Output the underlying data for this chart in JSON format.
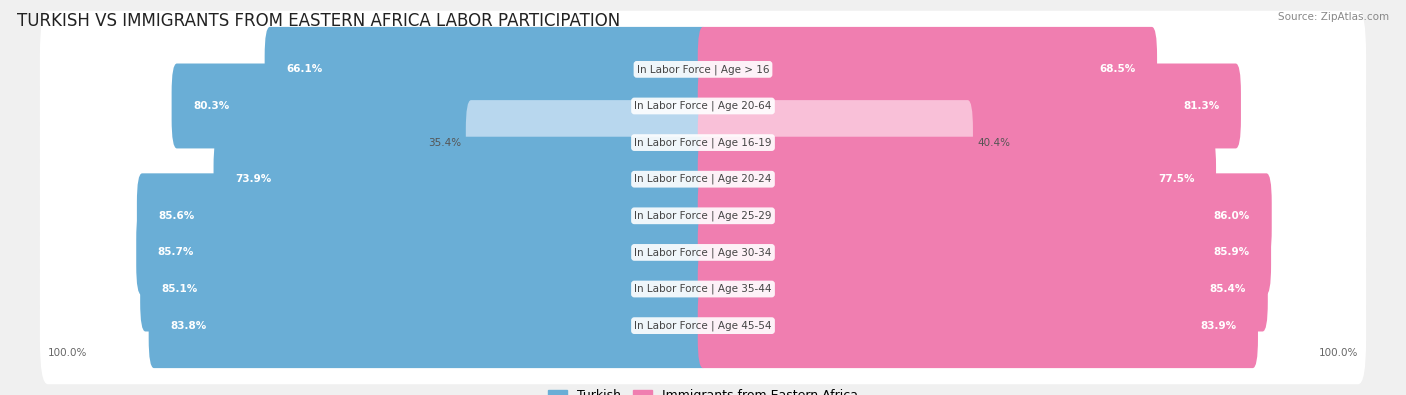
{
  "title": "TURKISH VS IMMIGRANTS FROM EASTERN AFRICA LABOR PARTICIPATION",
  "source": "Source: ZipAtlas.com",
  "categories": [
    "In Labor Force | Age > 16",
    "In Labor Force | Age 20-64",
    "In Labor Force | Age 16-19",
    "In Labor Force | Age 20-24",
    "In Labor Force | Age 25-29",
    "In Labor Force | Age 30-34",
    "In Labor Force | Age 35-44",
    "In Labor Force | Age 45-54"
  ],
  "turkish_values": [
    66.1,
    80.3,
    35.4,
    73.9,
    85.6,
    85.7,
    85.1,
    83.8
  ],
  "immigrant_values": [
    68.5,
    81.3,
    40.4,
    77.5,
    86.0,
    85.9,
    85.4,
    83.9
  ],
  "turkish_color": "#6AAED6",
  "immigrant_color": "#F07EB0",
  "turkish_color_light": "#B8D7EE",
  "immigrant_color_light": "#F9C0D8",
  "background_color": "#f0f0f0",
  "row_bg_color": "#ffffff",
  "max_value": 100.0,
  "legend_turkish": "Turkish",
  "legend_immigrant": "Immigrants from Eastern Africa",
  "title_fontsize": 12,
  "label_fontsize": 7.5,
  "value_fontsize": 7.5,
  "axis_label_fontsize": 7.5
}
